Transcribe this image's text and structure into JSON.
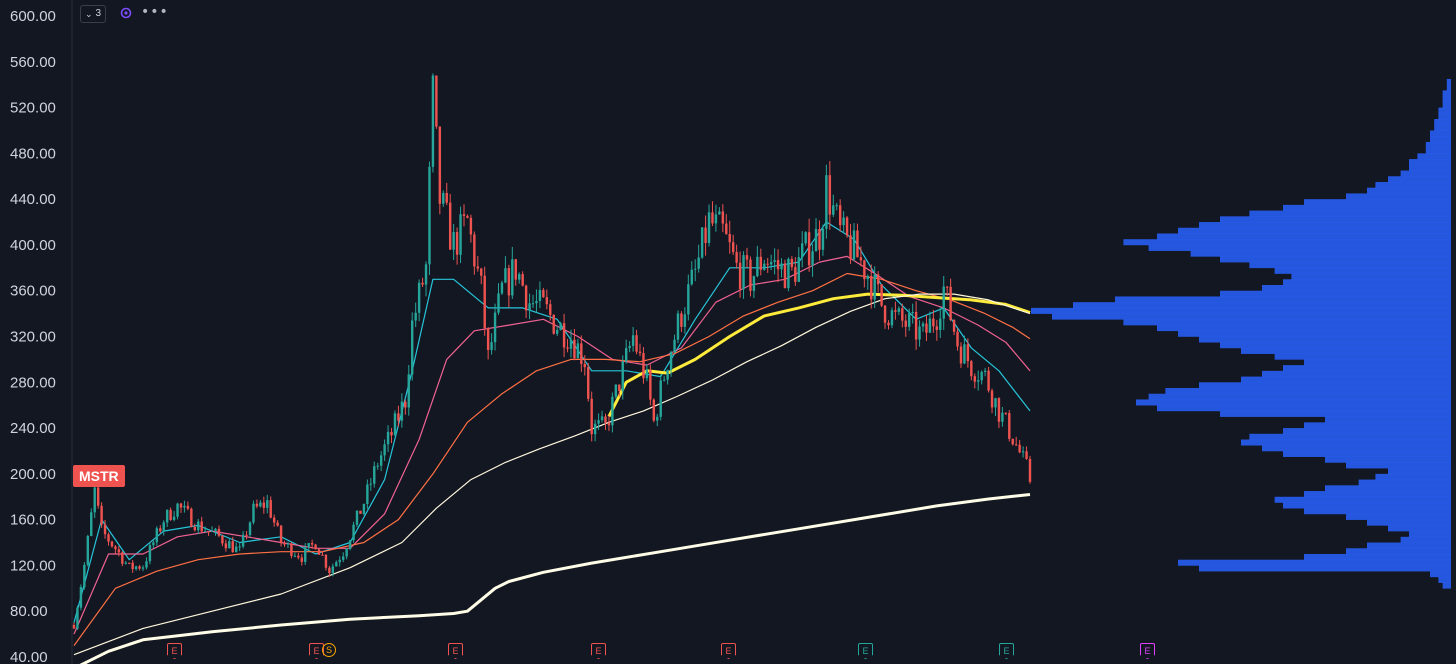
{
  "toolbar": {
    "collapse_count": "3",
    "collapse_icon": "chevron-down-icon",
    "indicator_icon": "indicator-icon",
    "more_label": "•••"
  },
  "ticker": {
    "symbol": "MSTR",
    "color": "#ef5350"
  },
  "colors": {
    "background": "#131722",
    "up": "#26a69a",
    "down": "#ef5350",
    "ma_8": "#26c6da",
    "ma_21": "#f06292",
    "ma_50": "#ff7043",
    "ma_100": "#ffeb3b",
    "ma_200_daily": "#fff8dc",
    "ma_long": "#fffde7",
    "volume_profile": "#2962ff"
  },
  "events": [
    {
      "label": "E",
      "type": "earnings",
      "color": "red"
    },
    {
      "label": "E",
      "type": "earnings",
      "color": "red"
    },
    {
      "label": "S",
      "type": "split",
      "color": "orange"
    },
    {
      "label": "E",
      "type": "earnings",
      "color": "red"
    },
    {
      "label": "E",
      "type": "earnings",
      "color": "red"
    },
    {
      "label": "E",
      "type": "earnings",
      "color": "red"
    },
    {
      "label": "E",
      "type": "earnings",
      "color": "green"
    },
    {
      "label": "E",
      "type": "earnings",
      "color": "green"
    },
    {
      "label": "E",
      "type": "earnings",
      "color": "magenta"
    }
  ],
  "chart_data": {
    "type": "candlestick",
    "title": "",
    "xlabel": "",
    "ylabel": "",
    "ylim": [
      40,
      600
    ],
    "y_ticks": [
      "600.00",
      "560.00",
      "520.00",
      "480.00",
      "440.00",
      "400.00",
      "360.00",
      "320.00",
      "280.00",
      "240.00",
      "200.00",
      "160.00",
      "120.00",
      "80.00",
      "40.00"
    ],
    "grid": false,
    "last_price": 195,
    "price_path": [
      [
        0,
        68
      ],
      [
        3,
        120
      ],
      [
        6,
        185
      ],
      [
        8,
        150
      ],
      [
        12,
        135
      ],
      [
        16,
        118
      ],
      [
        20,
        120
      ],
      [
        26,
        160
      ],
      [
        30,
        172
      ],
      [
        36,
        155
      ],
      [
        42,
        145
      ],
      [
        48,
        132
      ],
      [
        52,
        168
      ],
      [
        56,
        175
      ],
      [
        60,
        140
      ],
      [
        66,
        128
      ],
      [
        70,
        140
      ],
      [
        74,
        116
      ],
      [
        78,
        132
      ],
      [
        84,
        175
      ],
      [
        88,
        210
      ],
      [
        92,
        235
      ],
      [
        96,
        265
      ],
      [
        98,
        330
      ],
      [
        102,
        380
      ],
      [
        104,
        530
      ],
      [
        106,
        440
      ],
      [
        110,
        400
      ],
      [
        114,
        420
      ],
      [
        118,
        360
      ],
      [
        120,
        300
      ],
      [
        124,
        360
      ],
      [
        128,
        380
      ],
      [
        132,
        350
      ],
      [
        136,
        345
      ],
      [
        140,
        330
      ],
      [
        144,
        320
      ],
      [
        148,
        300
      ],
      [
        150,
        240
      ],
      [
        154,
        240
      ],
      [
        158,
        280
      ],
      [
        162,
        320
      ],
      [
        166,
        280
      ],
      [
        168,
        245
      ],
      [
        172,
        300
      ],
      [
        176,
        340
      ],
      [
        180,
        375
      ],
      [
        184,
        420
      ],
      [
        188,
        410
      ],
      [
        192,
        380
      ],
      [
        196,
        370
      ],
      [
        200,
        390
      ],
      [
        204,
        380
      ],
      [
        208,
        375
      ],
      [
        212,
        395
      ],
      [
        216,
        410
      ],
      [
        218,
        450
      ],
      [
        222,
        410
      ],
      [
        226,
        395
      ],
      [
        230,
        375
      ],
      [
        234,
        348
      ],
      [
        238,
        335
      ],
      [
        242,
        330
      ],
      [
        246,
        320
      ],
      [
        250,
        340
      ],
      [
        252,
        362
      ],
      [
        256,
        315
      ],
      [
        260,
        295
      ],
      [
        264,
        285
      ],
      [
        268,
        255
      ],
      [
        272,
        232
      ],
      [
        276,
        205
      ],
      [
        277,
        195
      ]
    ],
    "series": [
      {
        "id": "ma_8",
        "values": [
          [
            0,
            70
          ],
          [
            8,
            160
          ],
          [
            16,
            125
          ],
          [
            26,
            150
          ],
          [
            36,
            155
          ],
          [
            48,
            140
          ],
          [
            60,
            145
          ],
          [
            70,
            130
          ],
          [
            80,
            140
          ],
          [
            90,
            195
          ],
          [
            98,
            290
          ],
          [
            104,
            370
          ],
          [
            110,
            370
          ],
          [
            120,
            345
          ],
          [
            130,
            345
          ],
          [
            140,
            335
          ],
          [
            150,
            290
          ],
          [
            160,
            290
          ],
          [
            170,
            285
          ],
          [
            180,
            335
          ],
          [
            190,
            380
          ],
          [
            200,
            380
          ],
          [
            210,
            385
          ],
          [
            218,
            420
          ],
          [
            226,
            405
          ],
          [
            234,
            365
          ],
          [
            244,
            335
          ],
          [
            252,
            345
          ],
          [
            260,
            310
          ],
          [
            268,
            290
          ],
          [
            277,
            255
          ]
        ]
      },
      {
        "id": "ma_21",
        "values": [
          [
            0,
            60
          ],
          [
            10,
            130
          ],
          [
            20,
            130
          ],
          [
            30,
            145
          ],
          [
            40,
            150
          ],
          [
            50,
            145
          ],
          [
            60,
            140
          ],
          [
            70,
            135
          ],
          [
            80,
            135
          ],
          [
            90,
            165
          ],
          [
            100,
            230
          ],
          [
            108,
            300
          ],
          [
            116,
            325
          ],
          [
            126,
            330
          ],
          [
            136,
            335
          ],
          [
            146,
            320
          ],
          [
            156,
            300
          ],
          [
            166,
            295
          ],
          [
            176,
            310
          ],
          [
            186,
            350
          ],
          [
            196,
            365
          ],
          [
            206,
            370
          ],
          [
            216,
            385
          ],
          [
            224,
            390
          ],
          [
            232,
            375
          ],
          [
            242,
            355
          ],
          [
            252,
            345
          ],
          [
            262,
            330
          ],
          [
            270,
            315
          ],
          [
            277,
            290
          ]
        ]
      },
      {
        "id": "ma_50",
        "values": [
          [
            0,
            50
          ],
          [
            12,
            100
          ],
          [
            24,
            115
          ],
          [
            36,
            125
          ],
          [
            48,
            130
          ],
          [
            60,
            132
          ],
          [
            72,
            132
          ],
          [
            84,
            140
          ],
          [
            94,
            160
          ],
          [
            104,
            200
          ],
          [
            114,
            245
          ],
          [
            124,
            270
          ],
          [
            134,
            290
          ],
          [
            144,
            300
          ],
          [
            154,
            300
          ],
          [
            164,
            298
          ],
          [
            174,
            305
          ],
          [
            184,
            320
          ],
          [
            194,
            338
          ],
          [
            204,
            350
          ],
          [
            214,
            360
          ],
          [
            224,
            375
          ],
          [
            234,
            370
          ],
          [
            244,
            360
          ],
          [
            254,
            352
          ],
          [
            264,
            340
          ],
          [
            272,
            328
          ],
          [
            277,
            318
          ]
        ]
      },
      {
        "id": "ma_100",
        "values": [
          [
            155,
            250
          ],
          [
            160,
            280
          ],
          [
            166,
            290
          ],
          [
            172,
            288
          ],
          [
            180,
            300
          ],
          [
            190,
            320
          ],
          [
            200,
            338
          ],
          [
            210,
            345
          ],
          [
            220,
            353
          ],
          [
            230,
            357
          ],
          [
            240,
            356
          ],
          [
            250,
            354
          ],
          [
            260,
            352
          ],
          [
            270,
            348
          ],
          [
            277,
            341
          ]
        ]
      },
      {
        "id": "ma_200_daily",
        "values": [
          [
            0,
            42
          ],
          [
            20,
            65
          ],
          [
            40,
            80
          ],
          [
            60,
            95
          ],
          [
            80,
            118
          ],
          [
            95,
            140
          ],
          [
            105,
            170
          ],
          [
            115,
            195
          ],
          [
            125,
            210
          ],
          [
            135,
            222
          ],
          [
            145,
            233
          ],
          [
            155,
            245
          ],
          [
            165,
            255
          ],
          [
            175,
            268
          ],
          [
            185,
            282
          ],
          [
            195,
            298
          ],
          [
            205,
            312
          ],
          [
            215,
            328
          ],
          [
            225,
            342
          ],
          [
            235,
            353
          ],
          [
            245,
            357
          ],
          [
            255,
            357
          ],
          [
            265,
            352
          ],
          [
            277,
            340
          ]
        ]
      },
      {
        "id": "ma_long",
        "values": [
          [
            0,
            30
          ],
          [
            10,
            45
          ],
          [
            20,
            55
          ],
          [
            40,
            62
          ],
          [
            60,
            68
          ],
          [
            80,
            73
          ],
          [
            100,
            76
          ],
          [
            110,
            78
          ],
          [
            114,
            80
          ],
          [
            118,
            90
          ],
          [
            122,
            100
          ],
          [
            126,
            106
          ],
          [
            136,
            114
          ],
          [
            150,
            122
          ],
          [
            170,
            132
          ],
          [
            190,
            142
          ],
          [
            210,
            152
          ],
          [
            230,
            162
          ],
          [
            250,
            172
          ],
          [
            265,
            178
          ],
          [
            277,
            182
          ]
        ]
      }
    ],
    "volume_profile": {
      "price_bins_from": 100,
      "price_bins_to": 545,
      "bin_size": 5,
      "relative_volume": [
        0.02,
        0.03,
        0.05,
        0.6,
        0.65,
        0.35,
        0.25,
        0.2,
        0.12,
        0.1,
        0.15,
        0.2,
        0.25,
        0.35,
        0.4,
        0.42,
        0.35,
        0.3,
        0.22,
        0.18,
        0.15,
        0.25,
        0.3,
        0.4,
        0.45,
        0.5,
        0.48,
        0.4,
        0.35,
        0.3,
        0.55,
        0.7,
        0.75,
        0.72,
        0.68,
        0.6,
        0.5,
        0.45,
        0.4,
        0.35,
        0.42,
        0.5,
        0.55,
        0.6,
        0.65,
        0.7,
        0.78,
        0.95,
        1.0,
        0.9,
        0.8,
        0.55,
        0.45,
        0.4,
        0.38,
        0.42,
        0.48,
        0.55,
        0.62,
        0.72,
        0.78,
        0.7,
        0.65,
        0.6,
        0.55,
        0.48,
        0.4,
        0.35,
        0.25,
        0.2,
        0.18,
        0.15,
        0.12,
        0.1,
        0.1,
        0.08,
        0.06,
        0.06,
        0.05,
        0.05,
        0.04,
        0.04,
        0.03,
        0.03,
        0.02,
        0.02,
        0.02,
        0.01,
        0.01
      ]
    }
  }
}
